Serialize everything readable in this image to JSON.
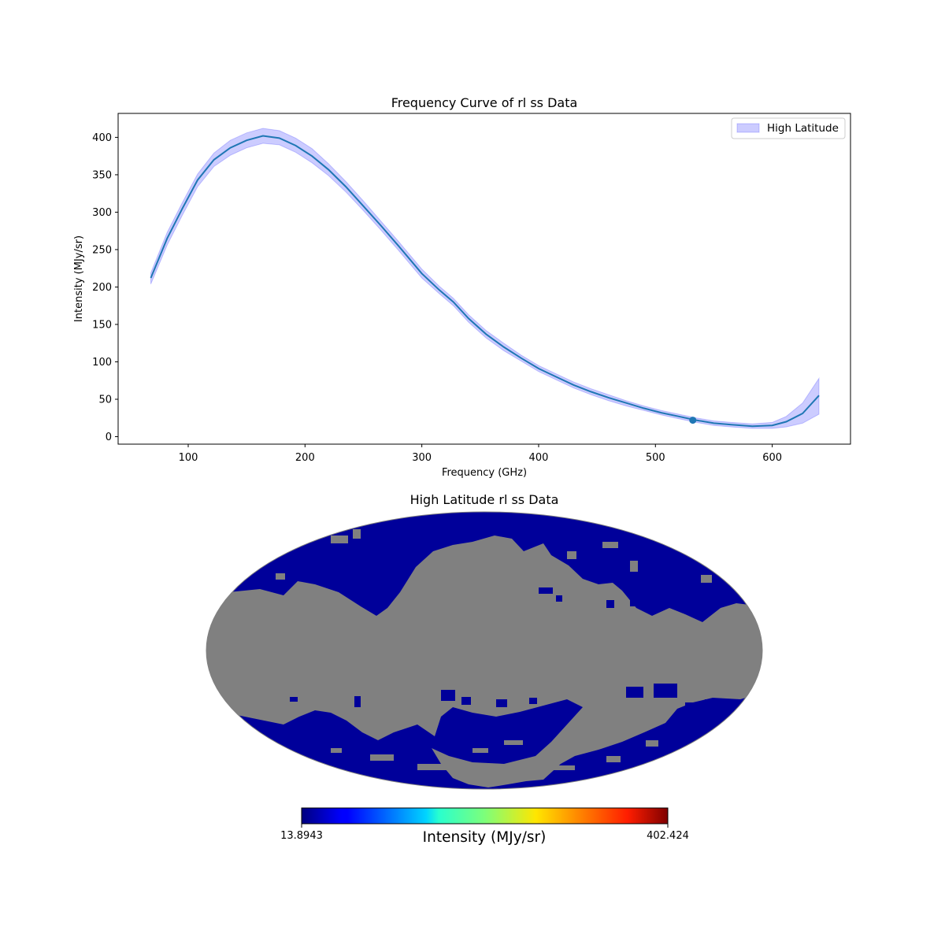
{
  "chart_data": [
    {
      "type": "line",
      "title": "Frequency Curve of rl ss Data",
      "xlabel": "Frequency (GHz)",
      "ylabel": "Intensity (MJy/sr)",
      "xlim": [
        40,
        667
      ],
      "ylim": [
        -10,
        432
      ],
      "xticks": [
        100,
        200,
        300,
        400,
        500,
        600
      ],
      "yticks": [
        0,
        50,
        100,
        150,
        200,
        250,
        300,
        350,
        400
      ],
      "grid": false,
      "legend_position": "top-right",
      "line_color": "#1f77b4",
      "band_color": "#0000ff",
      "series": [
        {
          "name": "High Latitude",
          "x": [
            68,
            82,
            95,
            108,
            122,
            136,
            150,
            164,
            178,
            192,
            206,
            220,
            235,
            250,
            265,
            280,
            300,
            315,
            327,
            340,
            355,
            370,
            385,
            400,
            415,
            430,
            445,
            460,
            475,
            490,
            505,
            520,
            535,
            550,
            565,
            583,
            600,
            612,
            626,
            640
          ],
          "mean": [
            212,
            265,
            305,
            343,
            370,
            386,
            396,
            402,
            399,
            389,
            375,
            357,
            334,
            308,
            282,
            255,
            218,
            196,
            180,
            158,
            137,
            120,
            105,
            91,
            80,
            69,
            60,
            52,
            45,
            38,
            32,
            27,
            22,
            18,
            16,
            14,
            15,
            20,
            31,
            55
          ],
          "upper": [
            219,
            273,
            313,
            351,
            379,
            396,
            406,
            412,
            409,
            399,
            385,
            365,
            341,
            315,
            288,
            261,
            224,
            201,
            185,
            163,
            142,
            125,
            109,
            95,
            84,
            73,
            64,
            56,
            48,
            41,
            35,
            30,
            25,
            21,
            19,
            17,
            19,
            27,
            45,
            78
          ],
          "lower": [
            204,
            256,
            296,
            334,
            361,
            376,
            386,
            392,
            390,
            380,
            366,
            349,
            327,
            302,
            276,
            249,
            212,
            191,
            175,
            153,
            132,
            115,
            101,
            87,
            76,
            65,
            56,
            48,
            41,
            35,
            29,
            24,
            19,
            15,
            13,
            11,
            11,
            13,
            18,
            30
          ]
        }
      ],
      "marker": {
        "x": 532,
        "y": 22
      }
    },
    {
      "type": "heatmap",
      "title": "High Latitude rl ss Data",
      "projection": "mollweide",
      "colormap": "jet",
      "masked_color": "#808080",
      "colorbar_min_label": "13.8943",
      "colorbar_max_label": "402.424",
      "colorbar_label": "Intensity (MJy/sr)"
    }
  ]
}
